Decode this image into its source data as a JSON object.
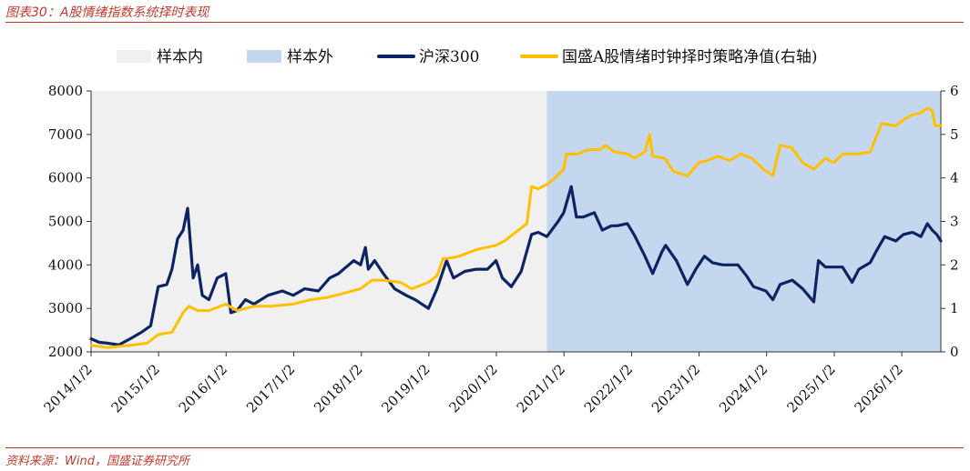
{
  "figure": {
    "title": "图表30：A股情绪指数系统择时表现",
    "source": "资料来源：Wind，国盛证券研究所"
  },
  "chart_data": {
    "type": "line",
    "legend": {
      "placement": "top",
      "items": [
        {
          "label": "样本内",
          "kind": "band",
          "color": "#f0f0f0"
        },
        {
          "label": "样本外",
          "kind": "band",
          "color": "#c5d7ef"
        },
        {
          "label": "沪深300",
          "kind": "line",
          "color": "#0d2463"
        },
        {
          "label": "国盛A股情绪时钟择时策略净值(右轴)",
          "kind": "line",
          "color": "#ffc000"
        }
      ]
    },
    "regions": [
      {
        "name": "样本内",
        "from": "2014/1/2",
        "to": "2020/10/1",
        "color": "#f0f0f0"
      },
      {
        "name": "样本外",
        "from": "2020/10/1",
        "to": "2026/8/1",
        "color": "#c5d7ef"
      }
    ],
    "x_ticks": [
      "2014/1/2",
      "2015/1/2",
      "2016/1/2",
      "2017/1/2",
      "2018/1/2",
      "2019/1/2",
      "2020/1/2",
      "2021/1/2",
      "2022/1/2",
      "2023/1/2",
      "2024/1/2",
      "2025/1/2",
      "2026/1/2"
    ],
    "x_range": [
      "2014/1/2",
      "2026/8/1"
    ],
    "y_left": {
      "min": 2000,
      "max": 8000,
      "ticks": [
        2000,
        3000,
        4000,
        5000,
        6000,
        7000,
        8000
      ]
    },
    "y_right": {
      "min": 0,
      "max": 6,
      "ticks": [
        0,
        1,
        2,
        3,
        4,
        5,
        6
      ]
    },
    "grid": false,
    "series": [
      {
        "name": "沪深300",
        "axis": "left",
        "color": "#0d2463",
        "points": [
          [
            "2014/1/2",
            2300
          ],
          [
            "2014/2/15",
            2220
          ],
          [
            "2014/4/1",
            2200
          ],
          [
            "2014/6/1",
            2160
          ],
          [
            "2014/8/1",
            2300
          ],
          [
            "2014/10/1",
            2450
          ],
          [
            "2014/11/20",
            2600
          ],
          [
            "2014/12/31",
            3500
          ],
          [
            "2015/2/15",
            3550
          ],
          [
            "2015/3/15",
            3900
          ],
          [
            "2015/4/15",
            4600
          ],
          [
            "2015/5/15",
            4800
          ],
          [
            "2015/6/8",
            5300
          ],
          [
            "2015/7/8",
            3700
          ],
          [
            "2015/8/1",
            4000
          ],
          [
            "2015/8/26",
            3300
          ],
          [
            "2015/10/1",
            3200
          ],
          [
            "2015/11/15",
            3700
          ],
          [
            "2015/12/31",
            3800
          ],
          [
            "2016/1/28",
            2900
          ],
          [
            "2016/3/1",
            2950
          ],
          [
            "2016/4/15",
            3200
          ],
          [
            "2016/6/1",
            3100
          ],
          [
            "2016/8/15",
            3300
          ],
          [
            "2016/11/1",
            3400
          ],
          [
            "2016/12/30",
            3300
          ],
          [
            "2017/3/1",
            3450
          ],
          [
            "2017/5/15",
            3400
          ],
          [
            "2017/7/15",
            3700
          ],
          [
            "2017/9/1",
            3800
          ],
          [
            "2017/11/22",
            4100
          ],
          [
            "2017/12/29",
            4000
          ],
          [
            "2018/1/24",
            4400
          ],
          [
            "2018/2/9",
            3900
          ],
          [
            "2018/3/15",
            4100
          ],
          [
            "2018/5/1",
            3800
          ],
          [
            "2018/7/1",
            3450
          ],
          [
            "2018/9/1",
            3300
          ],
          [
            "2018/10/20",
            3200
          ],
          [
            "2018/12/31",
            3000
          ],
          [
            "2019/2/15",
            3450
          ],
          [
            "2019/4/8",
            4100
          ],
          [
            "2019/5/15",
            3700
          ],
          [
            "2019/7/15",
            3850
          ],
          [
            "2019/9/15",
            3900
          ],
          [
            "2019/11/15",
            3900
          ],
          [
            "2019/12/31",
            4100
          ],
          [
            "2020/2/3",
            3700
          ],
          [
            "2020/3/23",
            3500
          ],
          [
            "2020/5/15",
            3850
          ],
          [
            "2020/7/10",
            4700
          ],
          [
            "2020/8/15",
            4750
          ],
          [
            "2020/10/1",
            4650
          ],
          [
            "2020/12/1",
            5000
          ],
          [
            "2020/12/31",
            5200
          ],
          [
            "2021/2/10",
            5800
          ],
          [
            "2021/3/10",
            5100
          ],
          [
            "2021/4/15",
            5100
          ],
          [
            "2021/6/15",
            5200
          ],
          [
            "2021/7/28",
            4800
          ],
          [
            "2021/9/15",
            4900
          ],
          [
            "2021/10/15",
            4900
          ],
          [
            "2021/12/10",
            4950
          ],
          [
            "2022/1/15",
            4700
          ],
          [
            "2022/3/15",
            4200
          ],
          [
            "2022/4/26",
            3800
          ],
          [
            "2022/6/15",
            4300
          ],
          [
            "2022/7/5",
            4450
          ],
          [
            "2022/9/1",
            4100
          ],
          [
            "2022/10/31",
            3550
          ],
          [
            "2022/12/15",
            3900
          ],
          [
            "2023/1/31",
            4200
          ],
          [
            "2023/3/15",
            4050
          ],
          [
            "2023/5/10",
            4000
          ],
          [
            "2023/7/31",
            4000
          ],
          [
            "2023/9/15",
            3750
          ],
          [
            "2023/10/23",
            3500
          ],
          [
            "2023/12/29",
            3400
          ],
          [
            "2024/2/5",
            3200
          ],
          [
            "2024/3/15",
            3550
          ],
          [
            "2024/5/20",
            3650
          ],
          [
            "2024/7/15",
            3450
          ],
          [
            "2024/9/13",
            3150
          ],
          [
            "2024/10/8",
            4100
          ],
          [
            "2024/11/15",
            3950
          ],
          [
            "2024/12/31",
            3950
          ],
          [
            "2025/2/15",
            3950
          ],
          [
            "2025/4/8",
            3600
          ],
          [
            "2025/5/15",
            3900
          ],
          [
            "2025/7/15",
            4050
          ],
          [
            "2025/8/15",
            4300
          ],
          [
            "2025/10/1",
            4650
          ],
          [
            "2025/12/1",
            4550
          ],
          [
            "2026/1/10",
            4700
          ],
          [
            "2026/3/1",
            4750
          ],
          [
            "2026/4/15",
            4650
          ],
          [
            "2026/5/20",
            4950
          ],
          [
            "2026/6/15",
            4800
          ],
          [
            "2026/7/10",
            4700
          ],
          [
            "2026/8/1",
            4550
          ]
        ]
      },
      {
        "name": "国盛A股情绪时钟择时策略净值(右轴)",
        "axis": "right",
        "color": "#ffc000",
        "points": [
          [
            "2014/1/2",
            0.15
          ],
          [
            "2014/4/1",
            0.1
          ],
          [
            "2014/8/1",
            0.15
          ],
          [
            "2014/11/1",
            0.2
          ],
          [
            "2014/12/31",
            0.4
          ],
          [
            "2015/3/15",
            0.45
          ],
          [
            "2015/5/15",
            0.9
          ],
          [
            "2015/6/15",
            1.05
          ],
          [
            "2015/8/1",
            0.95
          ],
          [
            "2015/10/1",
            0.95
          ],
          [
            "2015/12/31",
            1.1
          ],
          [
            "2016/3/1",
            0.95
          ],
          [
            "2016/6/1",
            1.05
          ],
          [
            "2016/9/1",
            1.05
          ],
          [
            "2016/12/30",
            1.1
          ],
          [
            "2017/4/1",
            1.2
          ],
          [
            "2017/7/1",
            1.25
          ],
          [
            "2017/10/1",
            1.35
          ],
          [
            "2017/12/29",
            1.45
          ],
          [
            "2018/3/1",
            1.65
          ],
          [
            "2018/5/1",
            1.65
          ],
          [
            "2018/8/1",
            1.6
          ],
          [
            "2018/10/1",
            1.45
          ],
          [
            "2018/12/31",
            1.6
          ],
          [
            "2019/2/15",
            1.75
          ],
          [
            "2019/3/20",
            2.15
          ],
          [
            "2019/4/15",
            2.15
          ],
          [
            "2019/6/15",
            2.2
          ],
          [
            "2019/9/15",
            2.35
          ],
          [
            "2019/12/31",
            2.45
          ],
          [
            "2020/2/15",
            2.55
          ],
          [
            "2020/4/15",
            2.75
          ],
          [
            "2020/6/15",
            2.95
          ],
          [
            "2020/7/10",
            3.8
          ],
          [
            "2020/8/15",
            3.75
          ],
          [
            "2020/10/1",
            3.85
          ],
          [
            "2020/11/15",
            4.0
          ],
          [
            "2020/12/31",
            4.2
          ],
          [
            "2021/1/15",
            4.55
          ],
          [
            "2021/3/15",
            4.55
          ],
          [
            "2021/5/15",
            4.65
          ],
          [
            "2021/7/15",
            4.65
          ],
          [
            "2021/8/15",
            4.75
          ],
          [
            "2021/10/1",
            4.6
          ],
          [
            "2021/12/15",
            4.55
          ],
          [
            "2022/1/15",
            4.45
          ],
          [
            "2022/3/15",
            4.6
          ],
          [
            "2022/4/10",
            5.0
          ],
          [
            "2022/4/26",
            4.5
          ],
          [
            "2022/7/1",
            4.45
          ],
          [
            "2022/8/15",
            4.15
          ],
          [
            "2022/10/31",
            4.05
          ],
          [
            "2022/12/31",
            4.35
          ],
          [
            "2023/2/15",
            4.4
          ],
          [
            "2023/4/15",
            4.5
          ],
          [
            "2023/6/15",
            4.4
          ],
          [
            "2023/8/15",
            4.55
          ],
          [
            "2023/10/15",
            4.45
          ],
          [
            "2023/12/15",
            4.2
          ],
          [
            "2024/2/5",
            4.05
          ],
          [
            "2024/3/15",
            4.75
          ],
          [
            "2024/5/15",
            4.7
          ],
          [
            "2024/7/15",
            4.35
          ],
          [
            "2024/9/13",
            4.2
          ],
          [
            "2024/11/15",
            4.45
          ],
          [
            "2024/12/31",
            4.35
          ],
          [
            "2025/2/15",
            4.55
          ],
          [
            "2025/5/15",
            4.55
          ],
          [
            "2025/7/15",
            4.6
          ],
          [
            "2025/9/15",
            5.25
          ],
          [
            "2025/12/1",
            5.2
          ],
          [
            "2026/1/15",
            5.35
          ],
          [
            "2026/3/1",
            5.45
          ],
          [
            "2026/4/15",
            5.5
          ],
          [
            "2026/5/20",
            5.6
          ],
          [
            "2026/6/15",
            5.55
          ],
          [
            "2026/7/1",
            5.2
          ],
          [
            "2026/8/1",
            5.2
          ]
        ]
      }
    ]
  }
}
